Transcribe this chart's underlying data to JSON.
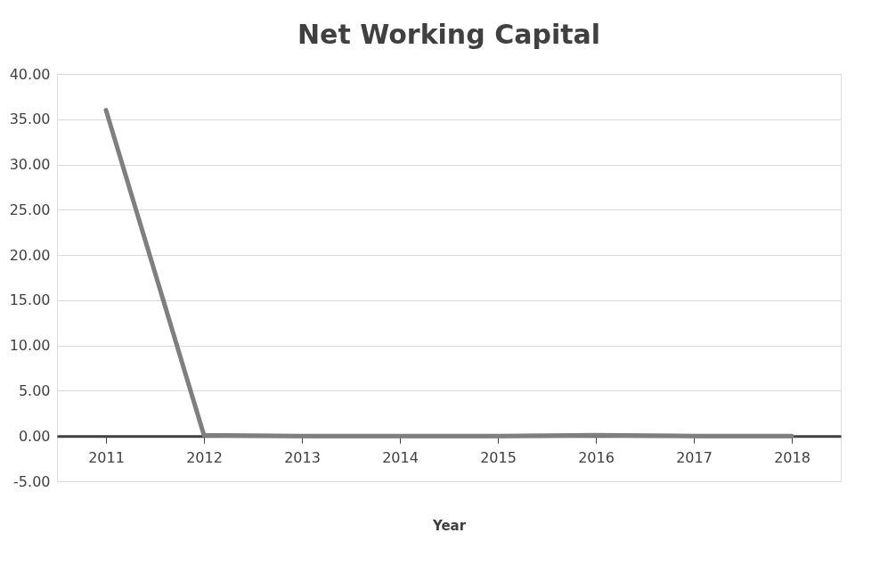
{
  "chart_data": {
    "type": "line",
    "title": "Net Working Capital",
    "xlabel": "Year",
    "categories": [
      "2011",
      "2012",
      "2013",
      "2014",
      "2015",
      "2016",
      "2017",
      "2018"
    ],
    "series": [
      {
        "color": "#7f7f7f",
        "values": [
          36.0,
          0.1,
          0.0,
          0.0,
          0.0,
          0.1,
          0.0,
          0.0
        ]
      }
    ],
    "ylim": [
      -5,
      40
    ],
    "yticks": [
      {
        "value": -5,
        "label": "-5.00"
      },
      {
        "value": 0,
        "label": "0.00"
      },
      {
        "value": 5,
        "label": "5.00"
      },
      {
        "value": 10,
        "label": "10.00"
      },
      {
        "value": 15,
        "label": "15.00"
      },
      {
        "value": 20,
        "label": "20.00"
      },
      {
        "value": 25,
        "label": "25.00"
      },
      {
        "value": 30,
        "label": "30.00"
      },
      {
        "value": 35,
        "label": "35.00"
      },
      {
        "value": 40,
        "label": "40.00"
      }
    ],
    "grid": "y",
    "marker": "none",
    "line_style": "solid"
  }
}
